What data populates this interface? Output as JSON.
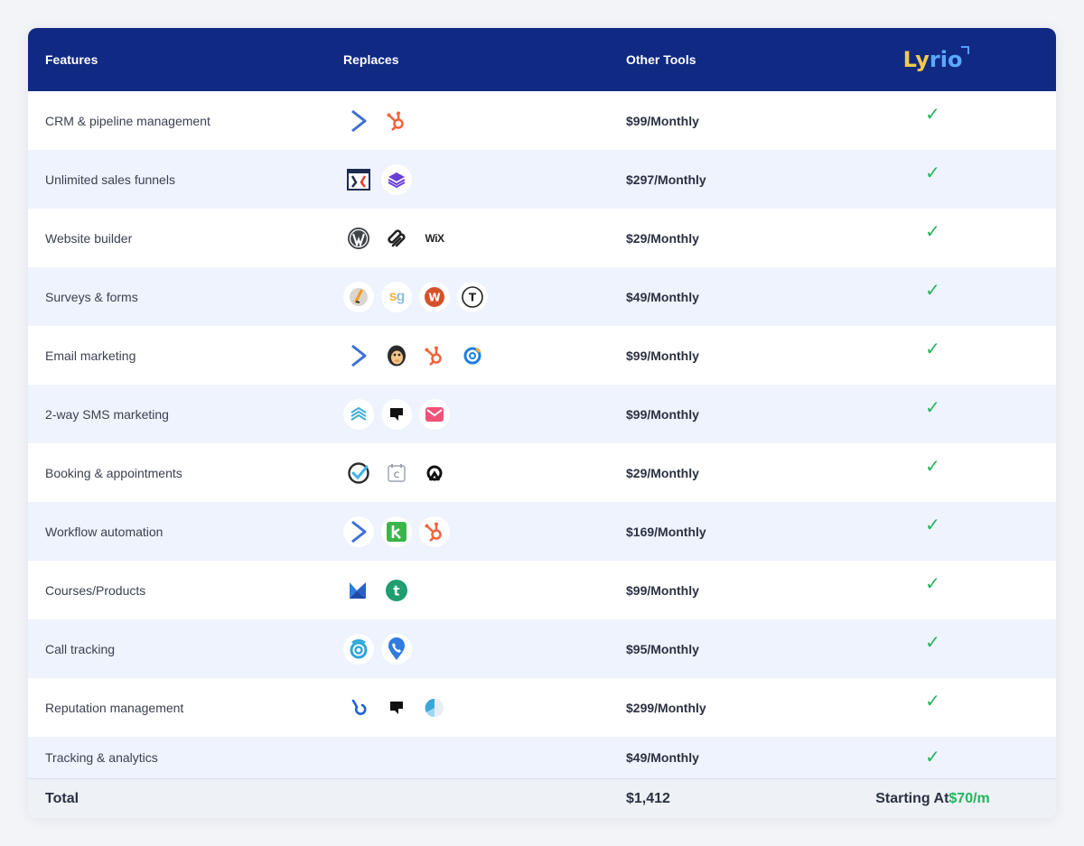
{
  "header": {
    "features": "Features",
    "replaces": "Replaces",
    "other_tools": "Other Tools",
    "logo_a": "Ly",
    "logo_b": "rio"
  },
  "rows": [
    {
      "feature": "CRM & pipeline management",
      "price": "$99/Monthly",
      "check": "✓",
      "icons": [
        "activecampaign-icon",
        "hubspot-icon"
      ]
    },
    {
      "feature": "Unlimited sales funnels",
      "price": "$297/Monthly",
      "check": "✓",
      "icons": [
        "clickfunnels-icon",
        "kartra-layers-icon"
      ]
    },
    {
      "feature": "Website builder",
      "price": "$29/Monthly",
      "check": "✓",
      "icons": [
        "wordpress-icon",
        "squarespace-icon",
        "wix-icon"
      ]
    },
    {
      "feature": "Surveys & forms",
      "price": "$49/Monthly",
      "check": "✓",
      "icons": [
        "jotform-icon",
        "surveygizmo-icon",
        "wufoo-icon",
        "typeform-icon"
      ]
    },
    {
      "feature": "Email marketing",
      "price": "$99/Monthly",
      "check": "✓",
      "icons": [
        "activecampaign-icon",
        "mailchimp-icon",
        "hubspot-icon",
        "constant-contact-icon"
      ]
    },
    {
      "feature": "2-way SMS marketing",
      "price": "$99/Monthly",
      "check": "✓",
      "icons": [
        "waves-icon",
        "podium-icon",
        "mail-icon"
      ]
    },
    {
      "feature": "Booking & appointments",
      "price": "$29/Monthly",
      "check": "✓",
      "icons": [
        "acuity-icon",
        "calendly-icon",
        "calendar-a-icon"
      ]
    },
    {
      "feature": "Workflow automation",
      "price": "$169/Monthly",
      "check": "✓",
      "icons": [
        "activecampaign-icon",
        "keap-icon",
        "hubspot-icon"
      ]
    },
    {
      "feature": "Courses/Products",
      "price": "$99/Monthly",
      "check": "✓",
      "icons": [
        "kajabi-icon",
        "teachable-icon"
      ]
    },
    {
      "feature": "Call tracking",
      "price": "$95/Monthly",
      "check": "✓",
      "icons": [
        "callrail-icon",
        "phone-pin-icon"
      ]
    },
    {
      "feature": "Reputation management",
      "price": "$299/Monthly",
      "check": "✓",
      "icons": [
        "birdeye-icon",
        "podium-icon",
        "pie-icon"
      ]
    },
    {
      "feature": "Tracking & analytics",
      "price": "$49/Monthly",
      "check": "✓",
      "icons": []
    }
  ],
  "total": {
    "label": "Total",
    "amount": "$1,412",
    "starting_prefix": "Starting At ",
    "starting_price": "$70/m"
  },
  "colors": {
    "header_bg": "#102a83",
    "alt_row": "#eef3fd",
    "check": "#22b65a"
  }
}
